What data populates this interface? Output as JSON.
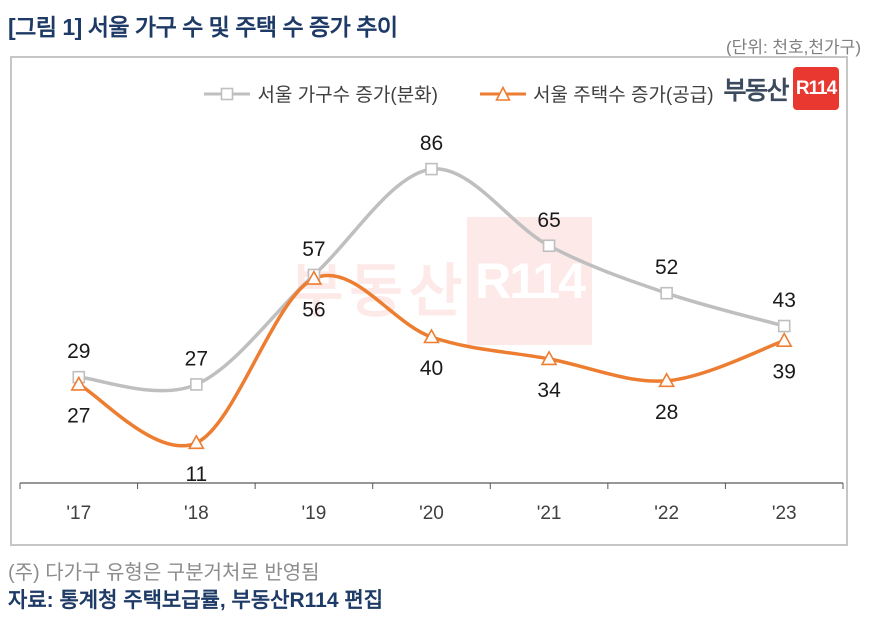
{
  "title": "[그림 1] 서울 가구 수 및 주택 수 증가 추이",
  "unit_label": "(단위: 천호,천가구)",
  "logo": {
    "brand": "부동산",
    "mark": "R114",
    "mark_bg": "#e8382f",
    "brand_color": "#3c4a5e"
  },
  "watermark": {
    "text": "부동산",
    "mark": "R114",
    "color": "#e13732"
  },
  "chart_data": {
    "type": "line",
    "smooth": true,
    "categories": [
      "'17",
      "'18",
      "'19",
      "'20",
      "'21",
      "'22",
      "'23"
    ],
    "series": [
      {
        "name": "서울 가구수 증가(분화)",
        "color": "#bfbfbf",
        "marker": "square",
        "values": [
          29,
          27,
          57,
          86,
          65,
          52,
          43
        ],
        "label_position": "above"
      },
      {
        "name": "서울 주택수 증가(공급)",
        "color": "#ed7d31",
        "marker": "triangle",
        "values": [
          27,
          11,
          56,
          40,
          34,
          28,
          39
        ],
        "label_position": "below"
      }
    ],
    "ylim": [
      0,
      100
    ],
    "grid": false,
    "y_axis_visible": false,
    "legend_position": "top",
    "axis_color": "#595959",
    "tick_label_color": "#404040",
    "data_label_color": "#1a1a1a"
  },
  "footer": {
    "note": "(주) 다가구 유형은 구분거처로 반영됨",
    "source": "자료: 통계청 주택보급률, 부동산R114 편집"
  }
}
